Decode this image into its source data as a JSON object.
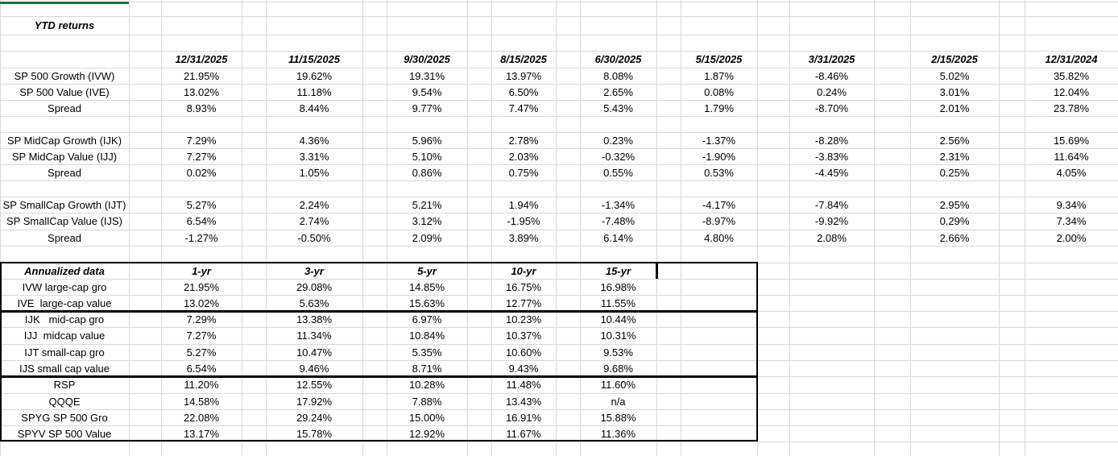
{
  "sheet": {
    "colors": {
      "accent_green": "#217346",
      "grid": "#d9d9d9",
      "table_border": "#000000"
    },
    "ytd": {
      "title": "YTD returns",
      "columns": [
        "12/31/2025",
        "11/15/2025",
        "9/30/2025",
        "8/15/2025",
        "6/30/2025",
        "5/15/2025",
        "3/31/2025",
        "2/15/2025",
        "12/31/2024"
      ],
      "groups": [
        {
          "rows": [
            {
              "label": "SP 500 Growth (IVW)",
              "values": [
                "21.95%",
                "19.62%",
                "19.31%",
                "13.97%",
                "8.08%",
                "1.87%",
                "-8.46%",
                "5.02%",
                "35.82%"
              ]
            },
            {
              "label": "SP 500 Value (IVE)",
              "values": [
                "13.02%",
                "11.18%",
                "9.54%",
                "6.50%",
                "2.65%",
                "0.08%",
                "0.24%",
                "3.01%",
                "12.04%"
              ]
            },
            {
              "label": "Spread",
              "values": [
                "8.93%",
                "8.44%",
                "9.77%",
                "7.47%",
                "5.43%",
                "1.79%",
                "-8.70%",
                "2.01%",
                "23.78%"
              ]
            }
          ]
        },
        {
          "rows": [
            {
              "label": "SP MidCap Growth (IJK)",
              "values": [
                "7.29%",
                "4.36%",
                "5.96%",
                "2.78%",
                "0.23%",
                "-1.37%",
                "-8.28%",
                "2.56%",
                "15.69%"
              ]
            },
            {
              "label": "SP MidCap Value (IJJ)",
              "values": [
                "7.27%",
                "3.31%",
                "5.10%",
                "2.03%",
                "-0.32%",
                "-1.90%",
                "-3.83%",
                "2.31%",
                "11.64%"
              ]
            },
            {
              "label": "Spread",
              "values": [
                "0.02%",
                "1.05%",
                "0.86%",
                "0.75%",
                "0.55%",
                "0.53%",
                "-4.45%",
                "0.25%",
                "4.05%"
              ]
            }
          ]
        },
        {
          "rows": [
            {
              "label": "SP SmallCap Growth (IJT)",
              "values": [
                "5.27%",
                "2.24%",
                "5.21%",
                "1.94%",
                "-1.34%",
                "-4.17%",
                "-7.84%",
                "2.95%",
                "9.34%"
              ]
            },
            {
              "label": "SP SmallCap Value (IJS)",
              "values": [
                "6.54%",
                "2.74%",
                "3.12%",
                "-1.95%",
                "-7.48%",
                "-8.97%",
                "-9.92%",
                "0.29%",
                "7.34%"
              ]
            },
            {
              "label": "Spread",
              "values": [
                "-1.27%",
                "-0.50%",
                "2.09%",
                "3.89%",
                "6.14%",
                "4.80%",
                "2.08%",
                "2.66%",
                "2.00%"
              ]
            }
          ]
        }
      ]
    },
    "annualized": {
      "title": "Annualized data",
      "columns": [
        "1-yr",
        "3-yr",
        "5-yr",
        "10-yr",
        "15-yr"
      ],
      "rows": [
        {
          "label": "IVW large-cap gro",
          "values": [
            "21.95%",
            "29.08%",
            "14.85%",
            "16.75%",
            "16.98%"
          ]
        },
        {
          "label": "IVE  large-cap value",
          "values": [
            "13.02%",
            "5.63%",
            "15.63%",
            "12.77%",
            "11.55%"
          ]
        },
        {
          "label": "IJK   mid-cap gro",
          "values": [
            "7.29%",
            "13.38%",
            "6.97%",
            "10.23%",
            "10.44%"
          ]
        },
        {
          "label": "IJJ  midcap value",
          "values": [
            "7.27%",
            "11.34%",
            "10.84%",
            "10.37%",
            "10.31%"
          ]
        },
        {
          "label": "IJT small-cap gro",
          "values": [
            "5.27%",
            "10.47%",
            "5.35%",
            "10.60%",
            "9.53%"
          ]
        },
        {
          "label": "IJS small cap value",
          "values": [
            "6.54%",
            "9.46%",
            "8.71%",
            "9.43%",
            "9.68%"
          ]
        },
        {
          "label": "RSP",
          "values": [
            "11.20%",
            "12.55%",
            "10.28%",
            "11.48%",
            "11.60%"
          ]
        },
        {
          "label": "QQQE",
          "values": [
            "14.58%",
            "17.92%",
            "7.88%",
            "13.43%",
            "n/a"
          ]
        },
        {
          "label": "SPYG SP 500 Gro",
          "values": [
            "22.08%",
            "29.24%",
            "15.00%",
            "16.91%",
            "15.88%"
          ]
        },
        {
          "label": "SPYV SP 500 Value",
          "values": [
            "13.17%",
            "15.78%",
            "12.92%",
            "11.67%",
            "11.36%"
          ]
        }
      ]
    }
  }
}
